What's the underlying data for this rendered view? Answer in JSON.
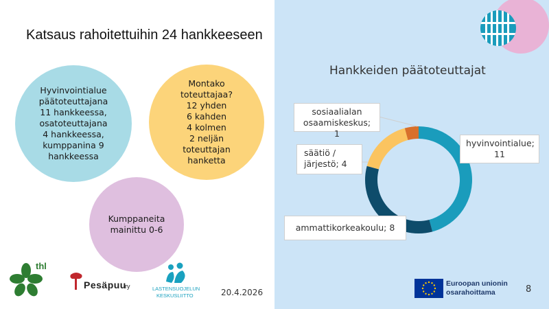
{
  "slide": {
    "title": "Katsaus rahoitettuihin 24 hankkeeseen",
    "date": "20.4.2026",
    "page_number": "8"
  },
  "bubbles": {
    "b1_lines": [
      "Hyvinvointialue",
      "päätoteuttajana",
      "11 hankkeessa,",
      "osatoteuttajana",
      "4 hankkeessa,",
      "kumppanina 9",
      "hankkeessa"
    ],
    "b2_lines": [
      "Montako",
      "toteuttajaa?",
      "12 yhden",
      "6 kahden",
      "4 kolmen",
      "2 neljän",
      "toteuttajan",
      "hanketta"
    ],
    "b3_lines": [
      "Kumppaneita",
      "mainittu 0-6"
    ]
  },
  "logos": {
    "thl": "thl",
    "pesapuu": "Pesäpuu",
    "pesapuu_suffix": "ry",
    "lastensuojelu_1": "LASTENSUOJELUN",
    "lastensuojelu_2": "KESKUSLIITTO",
    "eu_1": "Euroopan unionin",
    "eu_2": "osarahoittama"
  },
  "chart_data": {
    "type": "pie",
    "donut": true,
    "title": "Hankkeiden päätoteuttajat",
    "categories": [
      "hyvinvointialue",
      "ammattikorkeakoulu",
      "säätiö / järjestö",
      "sosiaalialan osaamiskeskus"
    ],
    "values": [
      11,
      8,
      4,
      1
    ],
    "labels": [
      [
        "hyvinvointialue;",
        "11"
      ],
      [
        "ammattikorkeakoulu; 8"
      ],
      [
        "säätiö /",
        "järjestö; 4"
      ],
      [
        "sosiaalialan",
        "osaamiskeskus; 1"
      ]
    ],
    "colors": [
      "#1a9cbc",
      "#0e4c6b",
      "#fbc460",
      "#d8702b"
    ],
    "legend": "none"
  },
  "colors": {
    "right_panel_bg": "#cce4f7",
    "bubble_teal": "#a8dbe6",
    "bubble_yellow": "#fcd47a",
    "bubble_pink": "#dfbfdf",
    "eu_blue": "#003399"
  }
}
